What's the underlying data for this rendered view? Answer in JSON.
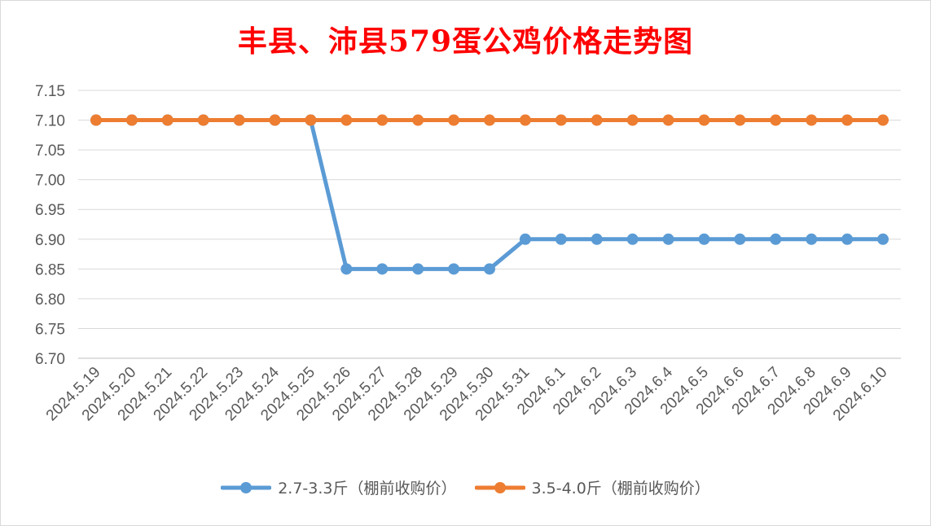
{
  "chart_data": {
    "type": "line",
    "title": "丰县、沛县579蛋公鸡价格走势图",
    "xlabel": "",
    "ylabel": "",
    "ylim": [
      6.7,
      7.15
    ],
    "yticks": [
      "7.15",
      "7.10",
      "7.05",
      "7.00",
      "6.95",
      "6.90",
      "6.85",
      "6.80",
      "6.75",
      "6.70"
    ],
    "grid": true,
    "legend_position": "bottom",
    "categories": [
      "2024.5.19",
      "2024.5.20",
      "2024.5.21",
      "2024.5.22",
      "2024.5.23",
      "2024.5.24",
      "2024.5.25",
      "2024.5.26",
      "2024.5.27",
      "2024.5.28",
      "2024.5.29",
      "2024.5.30",
      "2024.5.31",
      "2024.6.1",
      "2024.6.2",
      "2024.6.3",
      "2024.6.4",
      "2024.6.5",
      "2024.6.6",
      "2024.6.7",
      "2024.6.8",
      "2024.6.9",
      "2024.6.10"
    ],
    "series": [
      {
        "name": "2.7-3.3斤（棚前收购价）",
        "color": "#5b9bd5",
        "values": [
          7.1,
          7.1,
          7.1,
          7.1,
          7.1,
          7.1,
          7.1,
          6.85,
          6.85,
          6.85,
          6.85,
          6.85,
          6.9,
          6.9,
          6.9,
          6.9,
          6.9,
          6.9,
          6.9,
          6.9,
          6.9,
          6.9,
          6.9
        ]
      },
      {
        "name": "3.5-4.0斤（棚前收购价）",
        "color": "#ed7d31",
        "values": [
          7.1,
          7.1,
          7.1,
          7.1,
          7.1,
          7.1,
          7.1,
          7.1,
          7.1,
          7.1,
          7.1,
          7.1,
          7.1,
          7.1,
          7.1,
          7.1,
          7.1,
          7.1,
          7.1,
          7.1,
          7.1,
          7.1,
          7.1
        ]
      }
    ]
  }
}
